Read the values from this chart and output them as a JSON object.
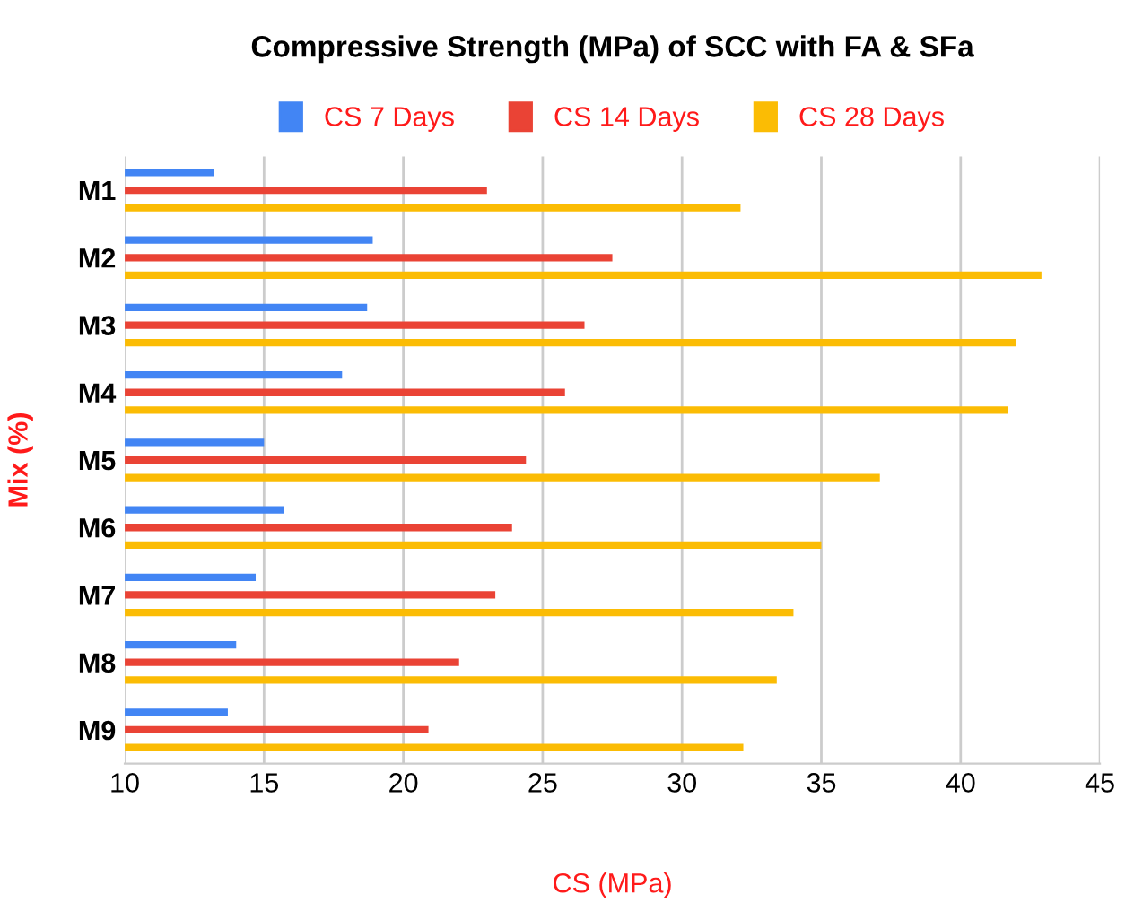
{
  "chart_data": {
    "type": "bar",
    "orientation": "horizontal",
    "title": "Compressive Strength (MPa) of SCC with FA & SFa",
    "xlabel": "CS (MPa)",
    "ylabel": "Mix (%)",
    "categories": [
      "M1",
      "M2",
      "M3",
      "M4",
      "M5",
      "M6",
      "M7",
      "M8",
      "M9"
    ],
    "series": [
      {
        "name": "CS 7 Days",
        "color": "#4285f4",
        "values": [
          13.2,
          18.9,
          18.7,
          17.8,
          15.0,
          15.7,
          14.7,
          14.0,
          13.7
        ]
      },
      {
        "name": "CS 14 Days",
        "color": "#ea4335",
        "values": [
          23.0,
          27.5,
          26.5,
          25.8,
          24.4,
          23.9,
          23.3,
          22.0,
          20.9
        ]
      },
      {
        "name": "CS 28 Days",
        "color": "#fbbc04",
        "values": [
          32.1,
          42.9,
          42.0,
          41.7,
          37.1,
          35.0,
          34.0,
          33.4,
          32.2
        ]
      }
    ],
    "xlim": [
      10,
      45
    ],
    "xticks": [
      10,
      15,
      20,
      25,
      30,
      35,
      40,
      45
    ],
    "grid": "x",
    "legend": "top"
  }
}
